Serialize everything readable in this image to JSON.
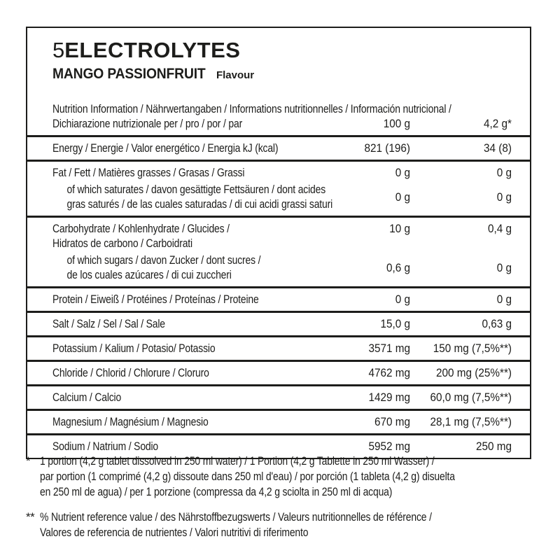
{
  "brand": {
    "number": "5",
    "name": "ELECTROLYTES"
  },
  "flavour": {
    "name": "MANGO PASSIONFRUIT",
    "type_word": "Flavour"
  },
  "table": {
    "header": {
      "line1": "Nutrition Information / Nährwertangaben / Informations nutritionnelles / Información nutricional /",
      "line2": "Dichiarazione nutrizionale per / pro / por / par",
      "col_per_100g": "100 g",
      "col_per_portion": "4,2 g*"
    },
    "energy": {
      "label": "Energy / Energie / Valor energético / Energia kJ (kcal)",
      "per100": "821 (196)",
      "portion": "34 (8)"
    },
    "fat": {
      "label": "Fat / Fett / Matières grasses / Grasas / Grassi",
      "per100": "0 g",
      "portion": "0 g"
    },
    "saturates": {
      "line1": "of which saturates / davon gesättigte Fettsäuren / dont acides",
      "line2": "gras saturés / de las cuales saturadas / di cui acidi grassi saturi",
      "per100": "0 g",
      "portion": "0 g"
    },
    "carbohydrate": {
      "line1": "Carbohydrate / Kohlenhydrate / Glucides /",
      "line2": "Hidratos de carbono / Carboidrati",
      "per100": "10 g",
      "portion": "0,4 g"
    },
    "sugars": {
      "line1": "of which sugars / davon Zucker / dont sucres /",
      "line2": "de los cuales azúcares / di cui zuccheri",
      "per100": "0,6 g",
      "portion": "0 g"
    },
    "protein": {
      "label": "Protein / Eiweiß / Protéines / Proteínas / Proteine",
      "per100": "0 g",
      "portion": "0 g"
    },
    "salt": {
      "label": "Salt / Salz / Sel / Sal / Sale",
      "per100": "15,0 g",
      "portion": "0,63 g"
    },
    "potassium": {
      "label": "Potassium / Kalium / Potasio/ Potassio",
      "per100": "3571 mg",
      "portion": "150 mg (7,5%**)"
    },
    "chloride": {
      "label": "Chloride / Chlorid / Chlorure / Cloruro",
      "per100": "4762 mg",
      "portion": "200 mg (25%**)"
    },
    "calcium": {
      "label": "Calcium / Calcio",
      "per100": "1429 mg",
      "portion": "60,0 mg (7,5%**)"
    },
    "magnesium": {
      "label": "Magnesium / Magnésium / Magnesio",
      "per100": "670 mg",
      "portion": "28,1 mg (7,5%**)"
    },
    "sodium": {
      "label": "Sodium / Natrium / Sodio",
      "per100": "5952 mg",
      "portion": "250 mg"
    }
  },
  "footnotes": {
    "portion": {
      "marker": "*",
      "lines": [
        "1 portion (4,2 g tablet dissolved in 250 ml water) / 1 Portion (4,2 g Tablette in 250 ml Wasser) /",
        "par portion (1 comprimé (4,2 g) dissoute dans 250 ml d'eau) / por porción (1 tableta (4,2 g) disuelta",
        "en 250 ml de agua) / per 1 porzione (compressa da 4,2 g sciolta in 250 ml di acqua)"
      ]
    },
    "nrv": {
      "marker": "**",
      "lines": [
        "% Nutrient reference value / des Nährstoffbezugswerts / Valeurs nutritionnelles de référence /",
        "Valores de referencia de nutrientes / Valori nutritivi di riferimento"
      ]
    }
  }
}
